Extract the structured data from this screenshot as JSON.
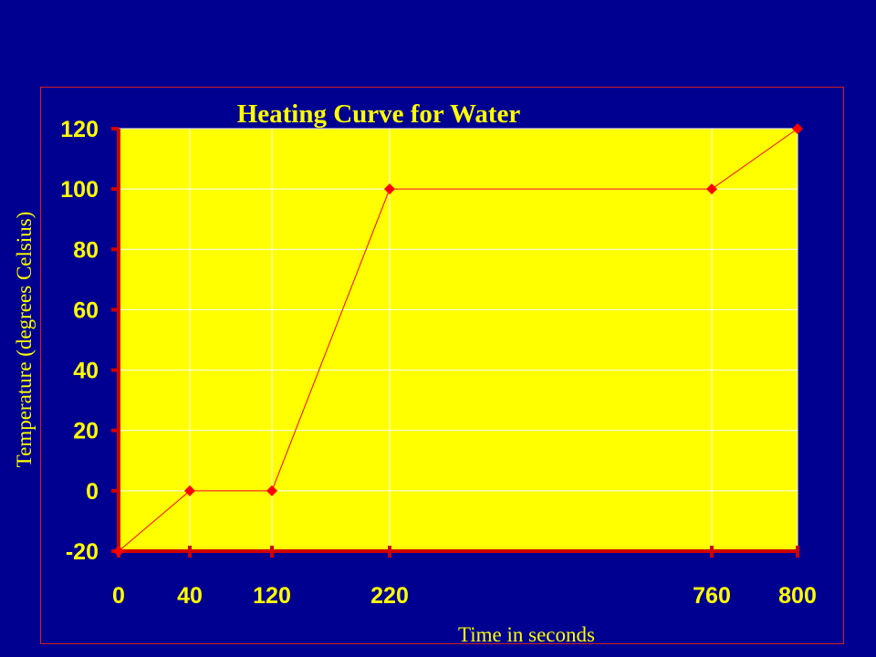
{
  "chart_data": {
    "type": "line",
    "title": "Heating Curve for Water",
    "xlabel": "Time in seconds",
    "ylabel": "Temperature (degrees Celsius)",
    "x_ticks": [
      0,
      40,
      120,
      220,
      760,
      800
    ],
    "y_ticks": [
      -20,
      0,
      20,
      40,
      60,
      80,
      100,
      120
    ],
    "ylim": [
      -20,
      120
    ],
    "grid": true,
    "legend": "none",
    "series": [
      {
        "x": [
          0,
          40,
          120,
          220,
          760,
          800
        ],
        "y": [
          -20,
          0,
          0,
          100,
          100,
          120
        ]
      }
    ]
  },
  "colors": {
    "background": "#000090",
    "plot_area": "#ffff00",
    "line": "#ff0000",
    "text": "#ffff00",
    "axis": "#d00000",
    "grid": "#ffffff"
  }
}
